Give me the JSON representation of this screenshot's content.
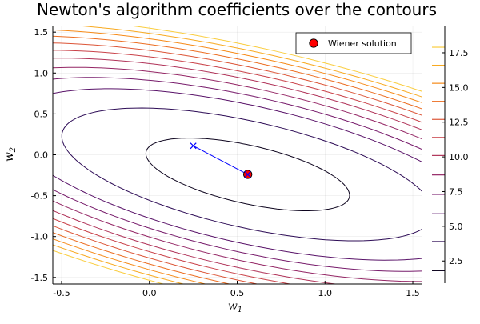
{
  "chart_data": {
    "type": "contour",
    "title": "Newton's algorithm coefficients over the contours",
    "xlabel": "w",
    "xlabel_sub": "1",
    "ylabel": "w",
    "ylabel_sub": "2",
    "xlim": [
      -0.55,
      1.55
    ],
    "ylim": [
      -1.58,
      1.58
    ],
    "x_ticks": [
      -0.5,
      0.0,
      0.5,
      1.0,
      1.5
    ],
    "x_tick_labels": [
      "-0.5",
      "0.0",
      "0.5",
      "1.0",
      "1.5"
    ],
    "y_ticks": [
      -1.5,
      -1.0,
      -0.5,
      0.0,
      0.5,
      1.0,
      1.5
    ],
    "y_tick_labels": [
      "-1.5",
      "-1.0",
      "-0.5",
      "0.0",
      "0.5",
      "1.0",
      "1.5"
    ],
    "grid": true,
    "surface": {
      "center": [
        0.56,
        -0.24
      ],
      "quadratic": {
        "a": 1.0,
        "b": 0.75,
        "c": 1.7
      },
      "scale": 4.0,
      "base": 0.9
    },
    "contour_levels": [
      1.8,
      3.9,
      5.9,
      7.3,
      8.7,
      10.1,
      11.4,
      12.7,
      14.0,
      15.3,
      16.6,
      17.9
    ],
    "colorbar": {
      "range": [
        0.9,
        19.4
      ],
      "ticks": [
        2.5,
        5.0,
        7.5,
        10.0,
        12.5,
        15.0,
        17.5
      ],
      "tick_labels": [
        "2.5",
        "5.0",
        "7.5",
        "10.0",
        "12.5",
        "15.0",
        "17.5"
      ]
    },
    "newton_path": {
      "x": [
        0.25,
        0.56
      ],
      "y": [
        0.11,
        -0.24
      ],
      "color": "#0000ff"
    },
    "series": [
      {
        "name": "Wiener solution",
        "x": [
          0.56
        ],
        "y": [
          -0.24
        ],
        "color": "#ff0000"
      }
    ],
    "legend_position": "top-right"
  }
}
